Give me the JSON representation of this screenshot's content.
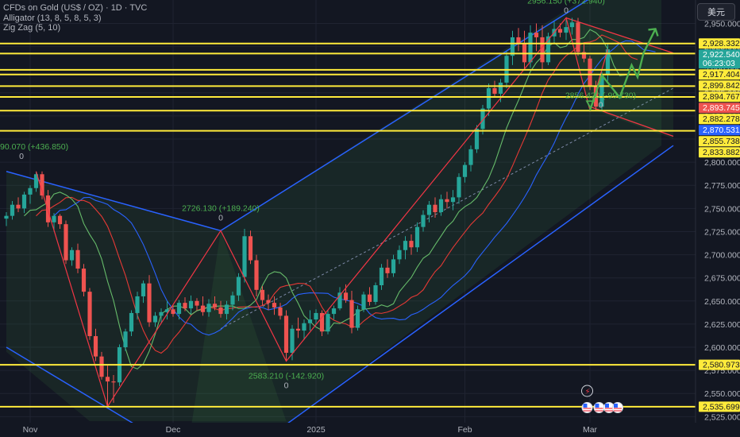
{
  "header": {
    "symbol_line": "CFDs on Gold (US$ / OZ) · 1D · TVC",
    "indicator_1": "Alligator (13, 8, 5, 8, 5, 3)",
    "indicator_2": "Zig Zag (5, 10)"
  },
  "currency_button": "美元",
  "colors": {
    "background": "#131722",
    "up_candle": "#26a69a",
    "down_candle": "#ef5350",
    "level_line": "#ffeb3b",
    "channel_line": "#2962ff",
    "zigzag_line": "#f23645",
    "projection_line": "#4caf50"
  },
  "chart_data": {
    "type": "candlestick",
    "title": "CFDs on Gold (US$ / OZ) · 1D · TVC",
    "x_tick_labels": [
      "Nov",
      "Dec",
      "2025",
      "Feb",
      "Mar"
    ],
    "y_tick_labels": [
      "2,950.000",
      "2,925.000",
      "2,900.000",
      "2,875.000",
      "2,850.000",
      "2,825.000",
      "2,800.000",
      "2,775.000",
      "2,750.000",
      "2,725.000",
      "2,700.000",
      "2,675.000",
      "2,650.000",
      "2,625.000",
      "2,600.000",
      "2,575.000",
      "2,550.000",
      "2,525.000"
    ],
    "y_range": [
      2515,
      2965
    ],
    "candles": [
      [
        2739,
        2746,
        2731,
        2742
      ],
      [
        2742,
        2758,
        2738,
        2754
      ],
      [
        2754,
        2762,
        2746,
        2750
      ],
      [
        2750,
        2768,
        2745,
        2765
      ],
      [
        2765,
        2775,
        2755,
        2772
      ],
      [
        2772,
        2790,
        2768,
        2787
      ],
      [
        2787,
        2790,
        2760,
        2764
      ],
      [
        2764,
        2770,
        2730,
        2735
      ],
      [
        2735,
        2745,
        2725,
        2742
      ],
      [
        2742,
        2744,
        2728,
        2733
      ],
      [
        2733,
        2737,
        2690,
        2694
      ],
      [
        2694,
        2708,
        2688,
        2705
      ],
      [
        2705,
        2712,
        2680,
        2685
      ],
      [
        2685,
        2690,
        2655,
        2660
      ],
      [
        2660,
        2664,
        2608,
        2612
      ],
      [
        2612,
        2620,
        2585,
        2590
      ],
      [
        2590,
        2595,
        2565,
        2568
      ],
      [
        2568,
        2580,
        2536,
        2563
      ],
      [
        2563,
        2570,
        2540,
        2562
      ],
      [
        2562,
        2603,
        2558,
        2600
      ],
      [
        2600,
        2620,
        2596,
        2617
      ],
      [
        2617,
        2640,
        2612,
        2637
      ],
      [
        2637,
        2660,
        2630,
        2655
      ],
      [
        2655,
        2672,
        2648,
        2669
      ],
      [
        2669,
        2678,
        2622,
        2627
      ],
      [
        2627,
        2638,
        2622,
        2634
      ],
      [
        2634,
        2642,
        2627,
        2638
      ],
      [
        2638,
        2650,
        2630,
        2641
      ],
      [
        2641,
        2645,
        2633,
        2636
      ],
      [
        2636,
        2651,
        2630,
        2648
      ],
      [
        2648,
        2654,
        2639,
        2642
      ],
      [
        2642,
        2656,
        2636,
        2650
      ],
      [
        2650,
        2653,
        2640,
        2645
      ],
      [
        2645,
        2655,
        2634,
        2638
      ],
      [
        2638,
        2652,
        2633,
        2647
      ],
      [
        2647,
        2655,
        2640,
        2643
      ],
      [
        2643,
        2650,
        2632,
        2636
      ],
      [
        2636,
        2650,
        2630,
        2646
      ],
      [
        2646,
        2660,
        2640,
        2656
      ],
      [
        2656,
        2680,
        2650,
        2676
      ],
      [
        2676,
        2728,
        2670,
        2720
      ],
      [
        2720,
        2726,
        2690,
        2694
      ],
      [
        2694,
        2700,
        2655,
        2662
      ],
      [
        2662,
        2666,
        2645,
        2651
      ],
      [
        2651,
        2657,
        2640,
        2648
      ],
      [
        2648,
        2655,
        2635,
        2643
      ],
      [
        2643,
        2648,
        2630,
        2634
      ],
      [
        2634,
        2640,
        2585,
        2594
      ],
      [
        2594,
        2624,
        2586,
        2620
      ],
      [
        2620,
        2632,
        2610,
        2618
      ],
      [
        2618,
        2630,
        2608,
        2626
      ],
      [
        2626,
        2640,
        2618,
        2630
      ],
      [
        2630,
        2641,
        2624,
        2637
      ],
      [
        2637,
        2640,
        2612,
        2617
      ],
      [
        2617,
        2640,
        2614,
        2636
      ],
      [
        2636,
        2645,
        2630,
        2642
      ],
      [
        2642,
        2665,
        2640,
        2659
      ],
      [
        2659,
        2668,
        2648,
        2651
      ],
      [
        2651,
        2661,
        2615,
        2621
      ],
      [
        2621,
        2645,
        2618,
        2641
      ],
      [
        2641,
        2660,
        2638,
        2657
      ],
      [
        2657,
        2665,
        2645,
        2649
      ],
      [
        2649,
        2670,
        2646,
        2667
      ],
      [
        2667,
        2690,
        2662,
        2686
      ],
      [
        2686,
        2695,
        2675,
        2680
      ],
      [
        2680,
        2700,
        2676,
        2695
      ],
      [
        2695,
        2710,
        2690,
        2705
      ],
      [
        2705,
        2720,
        2695,
        2715
      ],
      [
        2715,
        2722,
        2700,
        2708
      ],
      [
        2708,
        2735,
        2703,
        2730
      ],
      [
        2730,
        2748,
        2725,
        2743
      ],
      [
        2743,
        2758,
        2735,
        2754
      ],
      [
        2754,
        2762,
        2740,
        2746
      ],
      [
        2746,
        2765,
        2742,
        2760
      ],
      [
        2760,
        2768,
        2750,
        2757
      ],
      [
        2757,
        2770,
        2748,
        2762
      ],
      [
        2762,
        2788,
        2755,
        2784
      ],
      [
        2784,
        2800,
        2778,
        2797
      ],
      [
        2797,
        2818,
        2790,
        2814
      ],
      [
        2814,
        2840,
        2810,
        2836
      ],
      [
        2836,
        2862,
        2830,
        2858
      ],
      [
        2858,
        2885,
        2850,
        2880
      ],
      [
        2880,
        2888,
        2870,
        2874
      ],
      [
        2874,
        2890,
        2865,
        2886
      ],
      [
        2886,
        2920,
        2880,
        2915
      ],
      [
        2915,
        2942,
        2905,
        2935
      ],
      [
        2935,
        2945,
        2920,
        2928
      ],
      [
        2928,
        2942,
        2900,
        2908
      ],
      [
        2908,
        2948,
        2902,
        2940
      ],
      [
        2940,
        2950,
        2920,
        2935
      ],
      [
        2935,
        2948,
        2900,
        2908
      ],
      [
        2908,
        2940,
        2905,
        2936
      ],
      [
        2936,
        2952,
        2930,
        2944
      ],
      [
        2944,
        2950,
        2935,
        2940
      ],
      [
        2940,
        2954,
        2932,
        2946
      ],
      [
        2946,
        2956,
        2938,
        2951
      ],
      [
        2951,
        2956,
        2915,
        2919
      ],
      [
        2919,
        2928,
        2908,
        2912
      ],
      [
        2912,
        2915,
        2878,
        2882
      ],
      [
        2882,
        2888,
        2856,
        2860
      ],
      [
        2860,
        2898,
        2856,
        2895
      ],
      [
        2895,
        2928,
        2888,
        2922
      ]
    ],
    "horizontal_levels": [
      2928.332,
      2917.404,
      2899.842,
      2894.767,
      2882.278,
      2870.531,
      2855.738,
      2833.882,
      2580.973,
      2535.699
    ],
    "price_labels": [
      {
        "value": 2928.332,
        "text": "2,928.332",
        "kind": "level"
      },
      {
        "value": 2922.54,
        "text": "2,922.540",
        "sub": "06:23:03",
        "kind": "current"
      },
      {
        "value": 2917.404,
        "text": "2,917.404",
        "kind": "level"
      },
      {
        "value": 2899.842,
        "text": "2,899.842",
        "kind": "level"
      },
      {
        "value": 2894.767,
        "text": "2,894.767",
        "kind": "level"
      },
      {
        "value": 2893.745,
        "text": "2,893.745",
        "kind": "red"
      },
      {
        "value": 2882.278,
        "text": "2,882.278",
        "kind": "level"
      },
      {
        "value": 2870.531,
        "text": "2,870.531",
        "kind": "blue"
      },
      {
        "value": 2855.738,
        "text": "2,855.738",
        "kind": "level"
      },
      {
        "value": 2833.882,
        "text": "2,833.882",
        "kind": "level"
      },
      {
        "value": 2580.973,
        "text": "2,580.973",
        "kind": "level"
      },
      {
        "value": 2535.699,
        "text": "2,535.699",
        "kind": "level"
      }
    ],
    "zigzag_annotations": [
      {
        "price": "2956.150 (+372.940)",
        "count": "0"
      },
      {
        "price": "2726.130 (+189.240)",
        "count": "0"
      },
      {
        "price": "2583.210 (-142.920)",
        "count": "0"
      },
      {
        "price": "90.070 (+436.850)",
        "count": "0"
      },
      {
        "price": "2856.420 (-99.730)",
        "count": "0"
      }
    ],
    "grid": true
  }
}
